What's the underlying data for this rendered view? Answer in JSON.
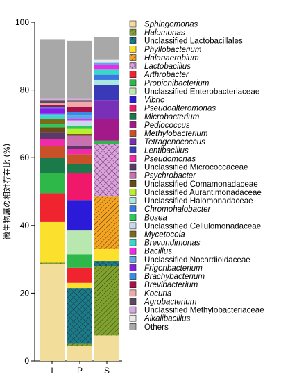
{
  "chart_data": {
    "type": "bar",
    "stacked": true,
    "categories": [
      "I",
      "P",
      "S"
    ],
    "ylabel": "微生物属の相対存在比 (%)",
    "ylim": [
      0,
      100
    ],
    "yticks": [
      0,
      20,
      40,
      60,
      80,
      100
    ],
    "legend_position": "right",
    "series": [
      {
        "name": "Sphingomonas",
        "italic": true,
        "color": "#f3dd9b",
        "values": [
          28.5,
          4.5,
          7.5
        ]
      },
      {
        "name": "Halomonas",
        "italic": true,
        "color": "#7fa22f",
        "pattern": "diag",
        "values": [
          0.5,
          0.5,
          20.5
        ]
      },
      {
        "name": "Unclassified Lactobacillales",
        "italic": false,
        "color": "#1a7b8a",
        "pattern": "cross",
        "values": [
          0,
          16.5,
          1.5
        ]
      },
      {
        "name": "Phyllobacterium",
        "italic": true,
        "color": "#fbe12d",
        "values": [
          12,
          1.5,
          3.5
        ]
      },
      {
        "name": "Halanaerobium",
        "italic": true,
        "color": "#f5a320",
        "pattern": "diag",
        "values": [
          0,
          0,
          15.5
        ]
      },
      {
        "name": "Lactobacillus",
        "italic": true,
        "color": "#dea0df",
        "pattern": "cross",
        "values": [
          0,
          0,
          15.5
        ]
      },
      {
        "name": "Arthrobacter",
        "italic": true,
        "color": "#f0242f",
        "values": [
          8.5,
          4.5,
          0
        ]
      },
      {
        "name": "Propionibacterium",
        "italic": true,
        "color": "#2eb84a",
        "values": [
          6,
          4,
          1
        ]
      },
      {
        "name": "Unclassified Enterobacteriaceae",
        "italic": false,
        "color": "#b8e8b0",
        "values": [
          0,
          7,
          0
        ]
      },
      {
        "name": "Vibrio",
        "italic": true,
        "color": "#2b1bd8",
        "values": [
          0,
          9,
          0
        ]
      },
      {
        "name": "Pseudoalteromonas",
        "italic": true,
        "color": "#f0186a",
        "values": [
          0,
          8,
          0
        ]
      },
      {
        "name": "Microbacterium",
        "italic": true,
        "color": "#1a7a4a",
        "values": [
          4.5,
          2.5,
          0
        ]
      },
      {
        "name": "Pediococcus",
        "italic": true,
        "color": "#a21a8a",
        "values": [
          0,
          0,
          6.5
        ]
      },
      {
        "name": "Methylobacterium",
        "italic": true,
        "color": "#c8512a",
        "values": [
          3.5,
          3,
          0
        ]
      },
      {
        "name": "Tetragenococcus",
        "italic": true,
        "color": "#7a2fb8",
        "values": [
          0,
          0,
          5.5
        ]
      },
      {
        "name": "Lentibacillus",
        "italic": true,
        "color": "#3a3ab8",
        "values": [
          0,
          0,
          4.5
        ]
      },
      {
        "name": "Pseudomonas",
        "italic": true,
        "color": "#f02aa8",
        "values": [
          2,
          1.5,
          0
        ]
      },
      {
        "name": "Unclassified Micrococcaceae",
        "italic": false,
        "color": "#5a3a6a",
        "values": [
          2,
          1,
          0
        ]
      },
      {
        "name": "Psychrobacter",
        "italic": true,
        "color": "#c870b0",
        "values": [
          0,
          3,
          0
        ]
      },
      {
        "name": "Unclassified Comamonadaceae",
        "italic": false,
        "color": "#6a4a1a",
        "values": [
          1.5,
          0.5,
          0
        ]
      },
      {
        "name": "Unclassified Aurantimonadaceae",
        "italic": false,
        "color": "#b8f02a",
        "values": [
          0,
          1.5,
          0
        ]
      },
      {
        "name": "Unclassified Halomonadaceae",
        "italic": false,
        "color": "#a8e8e0",
        "values": [
          0,
          0,
          1.5
        ]
      },
      {
        "name": "Chromohalobacter",
        "italic": true,
        "color": "#3a78e0",
        "values": [
          0,
          0,
          1.5
        ]
      },
      {
        "name": "Bosea",
        "italic": true,
        "color": "#2ec85a",
        "values": [
          1,
          1,
          0
        ]
      },
      {
        "name": "Unclassified Cellulomonadaceae",
        "italic": false,
        "color": "#c8d8f0",
        "values": [
          0,
          1.5,
          0
        ]
      },
      {
        "name": "Mycetocola",
        "italic": true,
        "color": "#7a6a1a",
        "values": [
          1.5,
          0,
          0
        ]
      },
      {
        "name": "Brevundimonas",
        "italic": true,
        "color": "#3ad8c8",
        "values": [
          1,
          0,
          1.5
        ]
      },
      {
        "name": "Bacillus",
        "italic": true,
        "color": "#f028e8",
        "values": [
          0,
          0.5,
          1.5
        ]
      },
      {
        "name": "Unclassified Nocardioidaceae",
        "italic": false,
        "color": "#5aa8e8",
        "values": [
          0.5,
          1,
          0.5
        ]
      },
      {
        "name": "Frigoribacterium",
        "italic": true,
        "color": "#8a1ae8",
        "values": [
          1.5,
          0,
          0
        ]
      },
      {
        "name": "Brachybacterium",
        "italic": true,
        "color": "#3a8ae8",
        "values": [
          0.5,
          1,
          0
        ]
      },
      {
        "name": "Brevibacterium",
        "italic": true,
        "color": "#a8104a",
        "values": [
          0.5,
          1.5,
          0
        ]
      },
      {
        "name": "Kocuria",
        "italic": true,
        "color": "#f0a8a8",
        "values": [
          0.5,
          1.5,
          0
        ]
      },
      {
        "name": "Agrobacterium",
        "italic": true,
        "color": "#5a4a5a",
        "values": [
          1,
          0.5,
          0
        ]
      },
      {
        "name": "Unclassified Methylobacteriaceae",
        "italic": false,
        "color": "#d8a8e8",
        "values": [
          0.5,
          0.5,
          0
        ]
      },
      {
        "name": "Alkalibacillus",
        "italic": true,
        "color": "#e8e8e8",
        "values": [
          0,
          0,
          1
        ]
      },
      {
        "name": "Others",
        "italic": false,
        "color": "#a8a8a8",
        "values": [
          17.5,
          17,
          6.5
        ]
      }
    ]
  }
}
